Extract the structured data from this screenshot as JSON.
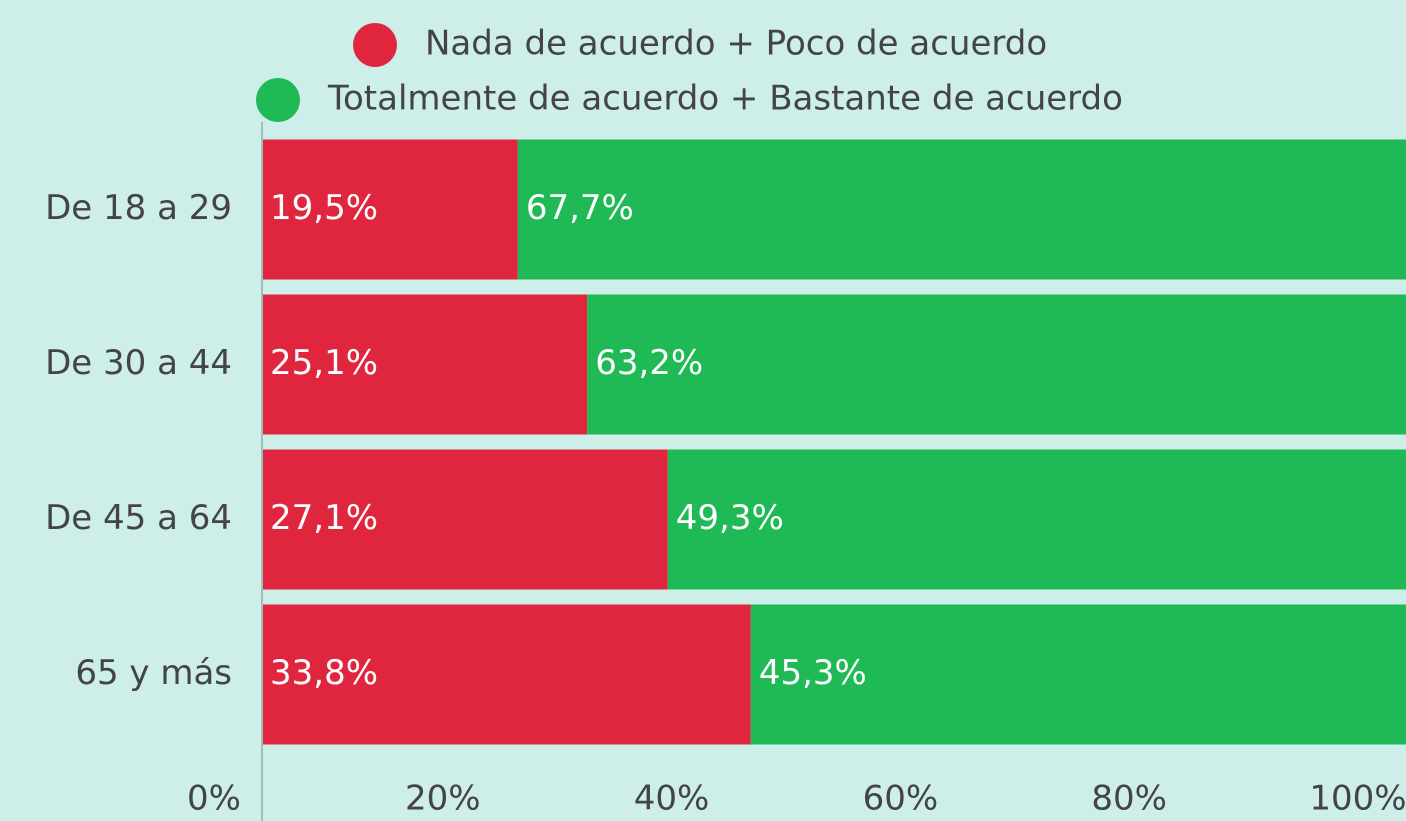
{
  "chart_data": {
    "type": "stacked-bar-horizontal",
    "normalized": true,
    "categories": [
      "De 18 a 29",
      "De 30 a 44",
      "De 45 a 64",
      "65 y más"
    ],
    "series": [
      {
        "name": "Nada de acuerdo + Poco de acuerdo",
        "color": "#e0263f",
        "values": [
          19.5,
          25.1,
          27.1,
          33.8
        ],
        "value_labels": [
          "19,5%",
          "25,1%",
          "27,1%",
          "33,8%"
        ]
      },
      {
        "name": "Totalmente de acuerdo + Bastante de acuerdo",
        "color": "#1fb955",
        "values": [
          67.7,
          63.2,
          49.3,
          45.3
        ],
        "value_labels": [
          "67,7%",
          "63,2%",
          "49,3%",
          "45,3%"
        ]
      }
    ],
    "xlim": [
      0,
      100
    ],
    "xticks": [
      {
        "value": 0,
        "label": "0%"
      },
      {
        "value": 20,
        "label": "20%"
      },
      {
        "value": 40,
        "label": "40%"
      },
      {
        "value": 60,
        "label": "60%"
      },
      {
        "value": 80,
        "label": "80%"
      },
      {
        "value": 100,
        "label": "100%"
      }
    ],
    "legend": "top"
  }
}
